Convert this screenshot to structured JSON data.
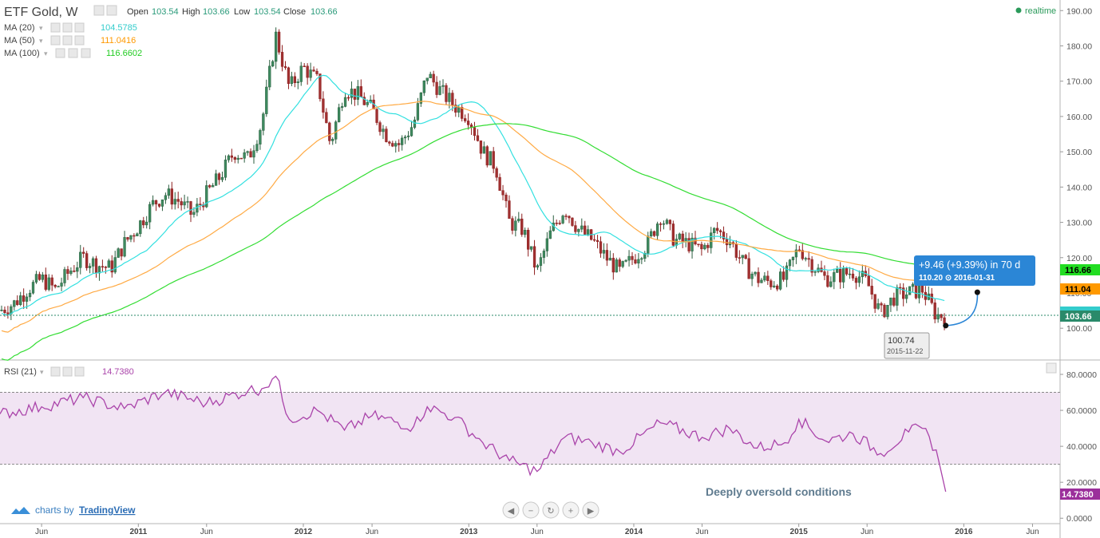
{
  "header": {
    "symbol": "ETF Gold, W",
    "ohlc": [
      {
        "label": "Open",
        "value": "103.54"
      },
      {
        "label": "High",
        "value": "103.66"
      },
      {
        "label": "Low",
        "value": "103.54"
      },
      {
        "label": "Close",
        "value": "103.66"
      }
    ],
    "realtime": "realtime"
  },
  "indicators": [
    {
      "label": "MA (20)",
      "value": "104.5785",
      "color": "#33cccc"
    },
    {
      "label": "MA (50)",
      "value": "111.0416",
      "color": "#ff9900"
    },
    {
      "label": "MA (100)",
      "value": "116.6602",
      "color": "#22cc22"
    }
  ],
  "rsi_legend": {
    "label": "RSI (21)",
    "value": "14.7380",
    "color": "#aa44aa"
  },
  "price_axis": {
    "ticks": [
      "190.00",
      "180.00",
      "170.00",
      "160.00",
      "150.00",
      "140.00",
      "130.00",
      "120.00",
      "110.00",
      "100.00"
    ],
    "ma100_tag": "116.66",
    "ma50_tag": "111.04",
    "close_tag": "103.66"
  },
  "rsi_axis": {
    "ticks": [
      "80.0000",
      "60.0000",
      "40.0000",
      "20.0000",
      "0.0000"
    ],
    "value_tag": "14.7380"
  },
  "time_axis": [
    "Jun",
    "2011",
    "Jun",
    "2012",
    "Jun",
    "2013",
    "Jun",
    "2014",
    "Jun",
    "2015",
    "Jun",
    "2016",
    "Jun"
  ],
  "projection": {
    "line1": "+9.46 (+9.39%) in 70 d",
    "line2": "110.20  ⊙ 2016-01-31",
    "start_price": "100.74",
    "start_date": "2015-11-22"
  },
  "annotation": "Deeply oversold conditions",
  "branding": {
    "prefix": "charts by",
    "name": "TradingView"
  },
  "nav_buttons": [
    "◀",
    "−",
    "↻",
    "+",
    "▶"
  ],
  "chart_data": [
    {
      "type": "candlestick",
      "title": "ETF Gold, W",
      "x_range": [
        "2010-03",
        "2016-08"
      ],
      "ylim": [
        91,
        193
      ],
      "close_series": [
        [
          "2010-03-01",
          105
        ],
        [
          "2010-04-01",
          107
        ],
        [
          "2010-05-01",
          111
        ],
        [
          "2010-06-01",
          114
        ],
        [
          "2010-07-01",
          111
        ],
        [
          "2010-08-01",
          116
        ],
        [
          "2010-09-01",
          120
        ],
        [
          "2010-10-01",
          118
        ],
        [
          "2010-11-01",
          117
        ],
        [
          "2010-12-01",
          124
        ],
        [
          "2011-01-01",
          129
        ],
        [
          "2011-02-01",
          135
        ],
        [
          "2011-03-01",
          138
        ],
        [
          "2011-04-01",
          136
        ],
        [
          "2011-05-01",
          132
        ],
        [
          "2011-06-01",
          138
        ],
        [
          "2011-07-01",
          143
        ],
        [
          "2011-08-01",
          150
        ],
        [
          "2011-09-01",
          148
        ],
        [
          "2011-10-01",
          158
        ],
        [
          "2011-11-01",
          183
        ],
        [
          "2011-12-01",
          168
        ],
        [
          "2012-01-01",
          174
        ],
        [
          "2012-02-01",
          170
        ],
        [
          "2012-03-01",
          152
        ],
        [
          "2012-04-01",
          168
        ],
        [
          "2012-05-01",
          166
        ],
        [
          "2012-06-01",
          162
        ],
        [
          "2012-07-01",
          155
        ],
        [
          "2012-08-01",
          152
        ],
        [
          "2012-09-01",
          158
        ],
        [
          "2012-10-01",
          172
        ],
        [
          "2012-11-01",
          167
        ],
        [
          "2012-12-01",
          163
        ],
        [
          "2013-01-01",
          160
        ],
        [
          "2013-02-01",
          150
        ],
        [
          "2013-03-01",
          146
        ],
        [
          "2013-04-01",
          130
        ],
        [
          "2013-05-01",
          128
        ],
        [
          "2013-06-01",
          116
        ],
        [
          "2013-07-01",
          127
        ],
        [
          "2013-08-01",
          134
        ],
        [
          "2013-09-01",
          128
        ],
        [
          "2013-10-01",
          125
        ],
        [
          "2013-11-01",
          120
        ],
        [
          "2013-12-01",
          116
        ],
        [
          "2014-01-01",
          120
        ],
        [
          "2014-02-01",
          124
        ],
        [
          "2014-03-01",
          132
        ],
        [
          "2014-04-01",
          125
        ],
        [
          "2014-05-01",
          124
        ],
        [
          "2014-06-01",
          122
        ],
        [
          "2014-07-01",
          128
        ],
        [
          "2014-08-01",
          125
        ],
        [
          "2014-09-01",
          118
        ],
        [
          "2014-10-01",
          114
        ],
        [
          "2014-11-01",
          113
        ],
        [
          "2014-12-01",
          114
        ],
        [
          "2015-01-01",
          123
        ],
        [
          "2015-02-01",
          118
        ],
        [
          "2015-03-01",
          114
        ],
        [
          "2015-04-01",
          115
        ],
        [
          "2015-05-01",
          116
        ],
        [
          "2015-06-01",
          113
        ],
        [
          "2015-07-01",
          104
        ],
        [
          "2015-08-01",
          109
        ],
        [
          "2015-09-01",
          110
        ],
        [
          "2015-10-01",
          111
        ],
        [
          "2015-11-01",
          103.66
        ]
      ],
      "series": [
        {
          "name": "MA (20)",
          "last": 104.5785,
          "color": "#33cccc"
        },
        {
          "name": "MA (50)",
          "last": 111.0416,
          "color": "#ff9900"
        },
        {
          "name": "MA (100)",
          "last": 116.6602,
          "color": "#22cc22"
        }
      ],
      "projection": {
        "from": [
          "2015-11-22",
          100.74
        ],
        "to": [
          "2016-01-31",
          110.2
        ]
      }
    },
    {
      "type": "line",
      "title": "RSI (21)",
      "ylim": [
        -3,
        88
      ],
      "band": [
        30,
        70
      ],
      "series": [
        {
          "name": "RSI (21)",
          "color": "#aa44aa",
          "points": [
            [
              "2010-03-01",
              58
            ],
            [
              "2010-06-01",
              62
            ],
            [
              "2010-09-01",
              67
            ],
            [
              "2010-12-01",
              61
            ],
            [
              "2011-03-01",
              70
            ],
            [
              "2011-06-01",
              64
            ],
            [
              "2011-09-01",
              71
            ],
            [
              "2011-10-01",
              72
            ],
            [
              "2011-11-01",
              79
            ],
            [
              "2011-12-01",
              55
            ],
            [
              "2012-02-01",
              60
            ],
            [
              "2012-04-01",
              49
            ],
            [
              "2012-06-01",
              57
            ],
            [
              "2012-09-01",
              51
            ],
            [
              "2012-10-01",
              62
            ],
            [
              "2012-12-01",
              56
            ],
            [
              "2013-02-01",
              42
            ],
            [
              "2013-04-01",
              32
            ],
            [
              "2013-06-01",
              26
            ],
            [
              "2013-08-01",
              45
            ],
            [
              "2013-10-01",
              42
            ],
            [
              "2013-12-01",
              37
            ],
            [
              "2014-03-01",
              53
            ],
            [
              "2014-06-01",
              45
            ],
            [
              "2014-08-01",
              50
            ],
            [
              "2014-10-01",
              39
            ],
            [
              "2014-12-01",
              42
            ],
            [
              "2015-01-01",
              55
            ],
            [
              "2015-03-01",
              43
            ],
            [
              "2015-05-01",
              47
            ],
            [
              "2015-07-01",
              36
            ],
            [
              "2015-09-01",
              48
            ],
            [
              "2015-10-01",
              50
            ],
            [
              "2015-11-01",
              38
            ],
            [
              "2015-11-22",
              14.738
            ]
          ]
        }
      ]
    }
  ]
}
